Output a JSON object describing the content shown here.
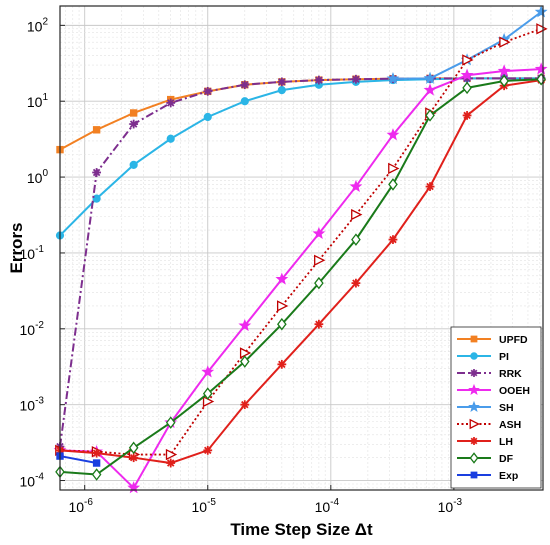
{
  "chart_data": {
    "type": "line",
    "xlabel": "Time Step Size Δt",
    "ylabel": "Errors",
    "xscale": "log",
    "yscale": "log",
    "xlim": [
      6.3e-07,
      0.0053
    ],
    "ylim": [
      7.5e-05,
      180
    ],
    "x_ticks": [
      {
        "value": 1e-06,
        "base": "10",
        "exp": "-6"
      },
      {
        "value": 1e-05,
        "base": "10",
        "exp": "-5"
      },
      {
        "value": 0.0001,
        "base": "10",
        "exp": "-4"
      },
      {
        "value": 0.001,
        "base": "10",
        "exp": "-3"
      }
    ],
    "y_ticks": [
      {
        "value": 0.0001,
        "base": "10",
        "exp": "-4"
      },
      {
        "value": 0.001,
        "base": "10",
        "exp": "-3"
      },
      {
        "value": 0.01,
        "base": "10",
        "exp": "-2"
      },
      {
        "value": 0.1,
        "base": "10",
        "exp": "-1"
      },
      {
        "value": 1,
        "base": "10",
        "exp": "0"
      },
      {
        "value": 10,
        "base": "10",
        "exp": "1"
      },
      {
        "value": 100,
        "base": "10",
        "exp": "2"
      }
    ],
    "grid": true,
    "legend_position": "bottom-right",
    "series": [
      {
        "name": "UPFD",
        "color": "#F28022",
        "marker": "square",
        "dash": "solid",
        "x": [
          6.3e-07,
          1.25e-06,
          2.5e-06,
          5e-06,
          1e-05,
          2e-05,
          4e-05,
          8e-05,
          0.00016,
          0.00032,
          0.00064,
          0.00128,
          0.00256,
          0.00512
        ],
        "y": [
          2.3,
          4.2,
          7.0,
          10.5,
          13.5,
          16.5,
          18.0,
          19.0,
          19.5,
          19.8,
          20.0,
          20.0,
          20.0,
          20.0
        ]
      },
      {
        "name": "PI",
        "color": "#2BB5E6",
        "marker": "circle",
        "dash": "solid",
        "x": [
          6.3e-07,
          1.25e-06,
          2.5e-06,
          5e-06,
          1e-05,
          2e-05,
          4e-05,
          8e-05,
          0.00016,
          0.00032,
          0.00064,
          0.00128,
          0.00256,
          0.00512
        ],
        "y": [
          0.17,
          0.52,
          1.45,
          3.2,
          6.2,
          10.0,
          14.0,
          16.5,
          18.0,
          19.0,
          19.5,
          20.0,
          20.0,
          20.0
        ]
      },
      {
        "name": "RRK",
        "color": "#7D2E8E",
        "marker": "asterisk",
        "dash": "dashdot",
        "x": [
          6.3e-07,
          1.25e-06,
          2.5e-06,
          5e-06,
          1e-05,
          2e-05,
          4e-05,
          8e-05,
          0.00016,
          0.00032,
          0.00064,
          0.00128,
          0.00256,
          0.00512
        ],
        "y": [
          0.00028,
          1.15,
          5.0,
          9.5,
          13.5,
          16.5,
          18.0,
          19.0,
          19.5,
          19.8,
          20.0,
          20.0,
          20.0,
          20.0
        ]
      },
      {
        "name": "OOEH",
        "color": "#EE2AEE",
        "marker": "star",
        "dash": "solid",
        "x": [
          6.3e-07,
          1.25e-06,
          2.5e-06,
          5e-06,
          1e-05,
          2e-05,
          4e-05,
          8e-05,
          0.00016,
          0.00032,
          0.00064,
          0.00128,
          0.00256,
          0.00512
        ],
        "y": [
          0.00025,
          0.00024,
          8e-05,
          0.00058,
          0.0027,
          0.011,
          0.045,
          0.18,
          0.75,
          3.6,
          14.0,
          22.0,
          25.0,
          26.5
        ]
      },
      {
        "name": "SH",
        "color": "#4A9CEA",
        "marker": "star",
        "dash": "solid",
        "x": [
          0.00032,
          0.00064,
          0.00128,
          0.00256,
          0.00512
        ],
        "y": [
          19.8,
          20.0,
          35.0,
          65.0,
          150.0
        ]
      },
      {
        "name": "ASH",
        "color": "#C00000",
        "marker": "triangle-right",
        "dash": "dotted",
        "x": [
          6.3e-07,
          1.25e-06,
          2.5e-06,
          5e-06,
          1e-05,
          2e-05,
          4e-05,
          8e-05,
          0.00016,
          0.00032,
          0.00064,
          0.00128,
          0.00256,
          0.00512
        ],
        "y": [
          0.00025,
          0.00024,
          0.00022,
          0.00022,
          0.0011,
          0.0048,
          0.02,
          0.08,
          0.32,
          1.3,
          7.0,
          35.0,
          60.0,
          90.0
        ]
      },
      {
        "name": "LH",
        "color": "#E0201B",
        "marker": "asterisk",
        "dash": "solid",
        "x": [
          6.3e-07,
          1.25e-06,
          2.5e-06,
          5e-06,
          1e-05,
          2e-05,
          4e-05,
          8e-05,
          0.00016,
          0.00032,
          0.00064,
          0.00128,
          0.00256,
          0.00512
        ],
        "y": [
          0.00025,
          0.00023,
          0.0002,
          0.00017,
          0.00025,
          0.001,
          0.0034,
          0.0115,
          0.04,
          0.15,
          0.75,
          6.5,
          16.0,
          19.0
        ]
      },
      {
        "name": "DF",
        "color": "#1A7A1A",
        "marker": "diamond",
        "dash": "solid",
        "x": [
          6.3e-07,
          1.25e-06,
          2.5e-06,
          5e-06,
          1e-05,
          2e-05,
          4e-05,
          8e-05,
          0.00016,
          0.00032,
          0.00064,
          0.00128,
          0.00256,
          0.00512
        ],
        "y": [
          0.00013,
          0.00012,
          0.00027,
          0.00058,
          0.0014,
          0.0037,
          0.0115,
          0.04,
          0.15,
          0.8,
          6.5,
          15.0,
          18.5,
          19.5
        ]
      },
      {
        "name": "Exp",
        "color": "#1A3FE0",
        "marker": "square",
        "dash": "solid",
        "x": [
          6.3e-07,
          1.25e-06
        ],
        "y": [
          0.00021,
          0.00017
        ]
      }
    ]
  }
}
